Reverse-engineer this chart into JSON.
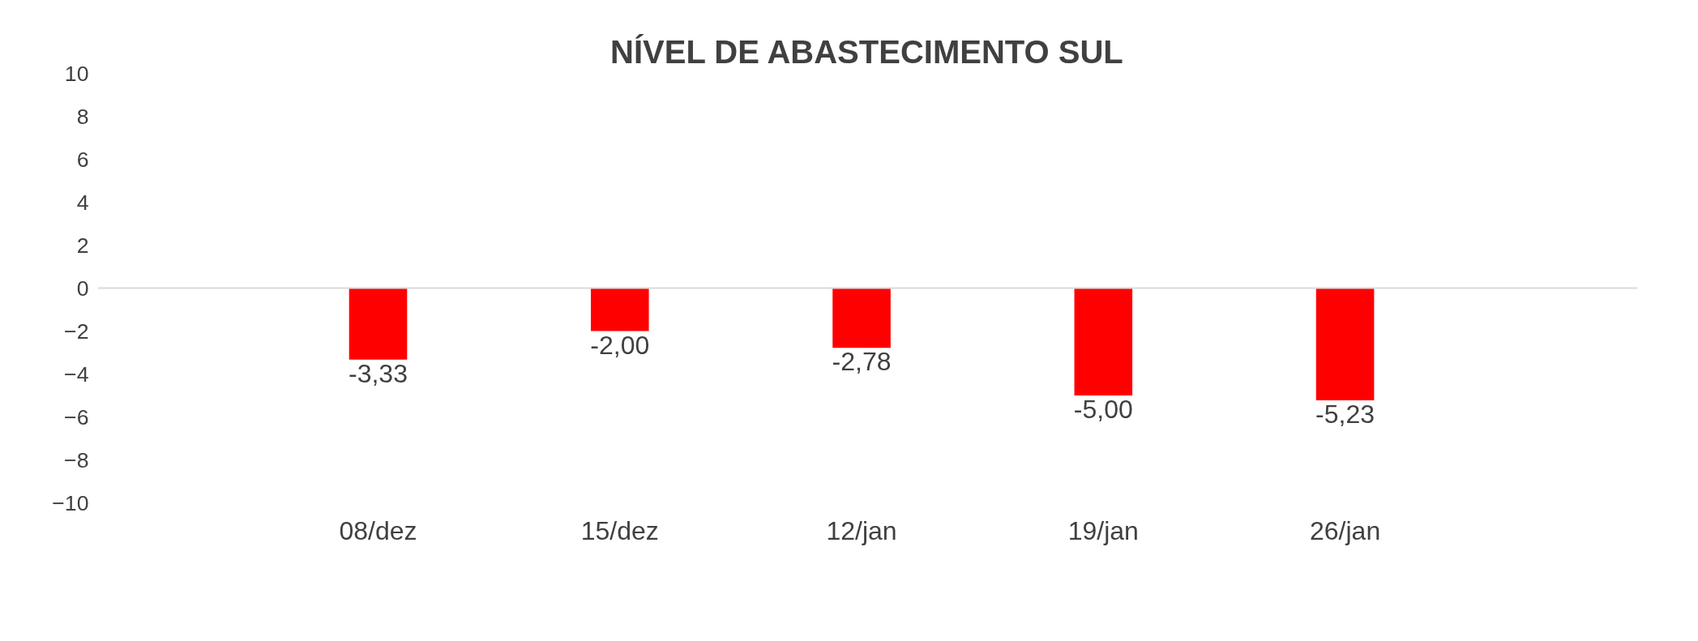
{
  "chart_data": {
    "type": "bar",
    "title": "NÍVEL DE ABASTECIMENTO SUL",
    "categories": [
      "08/dez",
      "15/dez",
      "12/jan",
      "19/jan",
      "26/jan"
    ],
    "values": [
      -3.33,
      -2.0,
      -2.78,
      -5.0,
      -5.23
    ],
    "value_labels": [
      "-3,33",
      "-2,00",
      "-2,78",
      "-5,00",
      "-5,23"
    ],
    "color": "#ff0000",
    "ylim": [
      -10,
      10
    ],
    "yticks": [
      -10,
      -8,
      -6,
      -4,
      -2,
      0,
      2,
      4,
      6,
      8,
      10
    ],
    "ref_lines": [
      {
        "axis": "y",
        "value": 0,
        "color": "#d9d9d9"
      }
    ],
    "grid": false
  }
}
